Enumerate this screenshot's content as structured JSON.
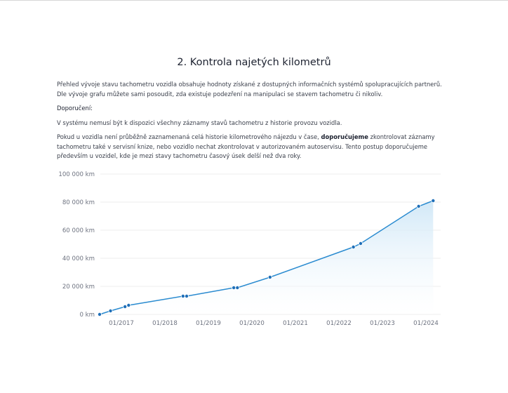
{
  "section": {
    "title": "2. Kontrola najetých kilometrů",
    "intro": "Přehled vývoje stavu tachometru vozidla obsahuje hodnoty získané z dostupných informačních systémů spolupracujících partnerů. Dle vývoje grafu můžete sami posoudit, zda existuje podezření na manipulaci se stavem tachometru či nikoliv.",
    "recommendation_heading": "Doporučení:",
    "note": "V systému nemusí být k dispozici všechny záznamy stavů tachometru z historie provozu vozidla.",
    "advice_before": "Pokud u vozidla není průběžně zaznamenaná celá historie kilometrového nájezdu v čase, ",
    "advice_bold": "doporučujeme",
    "advice_after": " zkontrolovat záznamy tachometru také v servisní knize, nebo vozidlo nechat zkontrolovat v autorizovaném autoservisu. Tento postup doporučujeme především u vozidel, kde je mezi stavy tachometru časový úsek delší než dva roky."
  },
  "chart_data": {
    "type": "area",
    "title": "",
    "xlabel": "",
    "ylabel": "",
    "ylim": [
      0,
      100000
    ],
    "y_ticks": [
      "0 km",
      "20 000 km",
      "40 000 km",
      "60 000 km",
      "80 000 km",
      "100 000 km"
    ],
    "y_tick_values": [
      0,
      20000,
      40000,
      60000,
      80000,
      100000
    ],
    "x_ticks": [
      "01/2017",
      "01/2018",
      "01/2019",
      "01/2020",
      "01/2021",
      "01/2022",
      "01/2023",
      "01/2024"
    ],
    "grid": true,
    "line_color": "#2a8bd0",
    "point_color": "#1f6fb8",
    "fill_color": "#d6ebf8",
    "series": [
      {
        "x": [
          "2016-07",
          "2016-10",
          "2017-02",
          "2017-03",
          "2018-06",
          "2018-07",
          "2019-08",
          "2019-09",
          "2020-06",
          "2022-05",
          "2022-07",
          "2023-11",
          "2024-03"
        ],
        "y": [
          0,
          2500,
          5500,
          6500,
          13000,
          13000,
          19000,
          19000,
          26500,
          48000,
          50500,
          77000,
          81000
        ]
      }
    ]
  }
}
